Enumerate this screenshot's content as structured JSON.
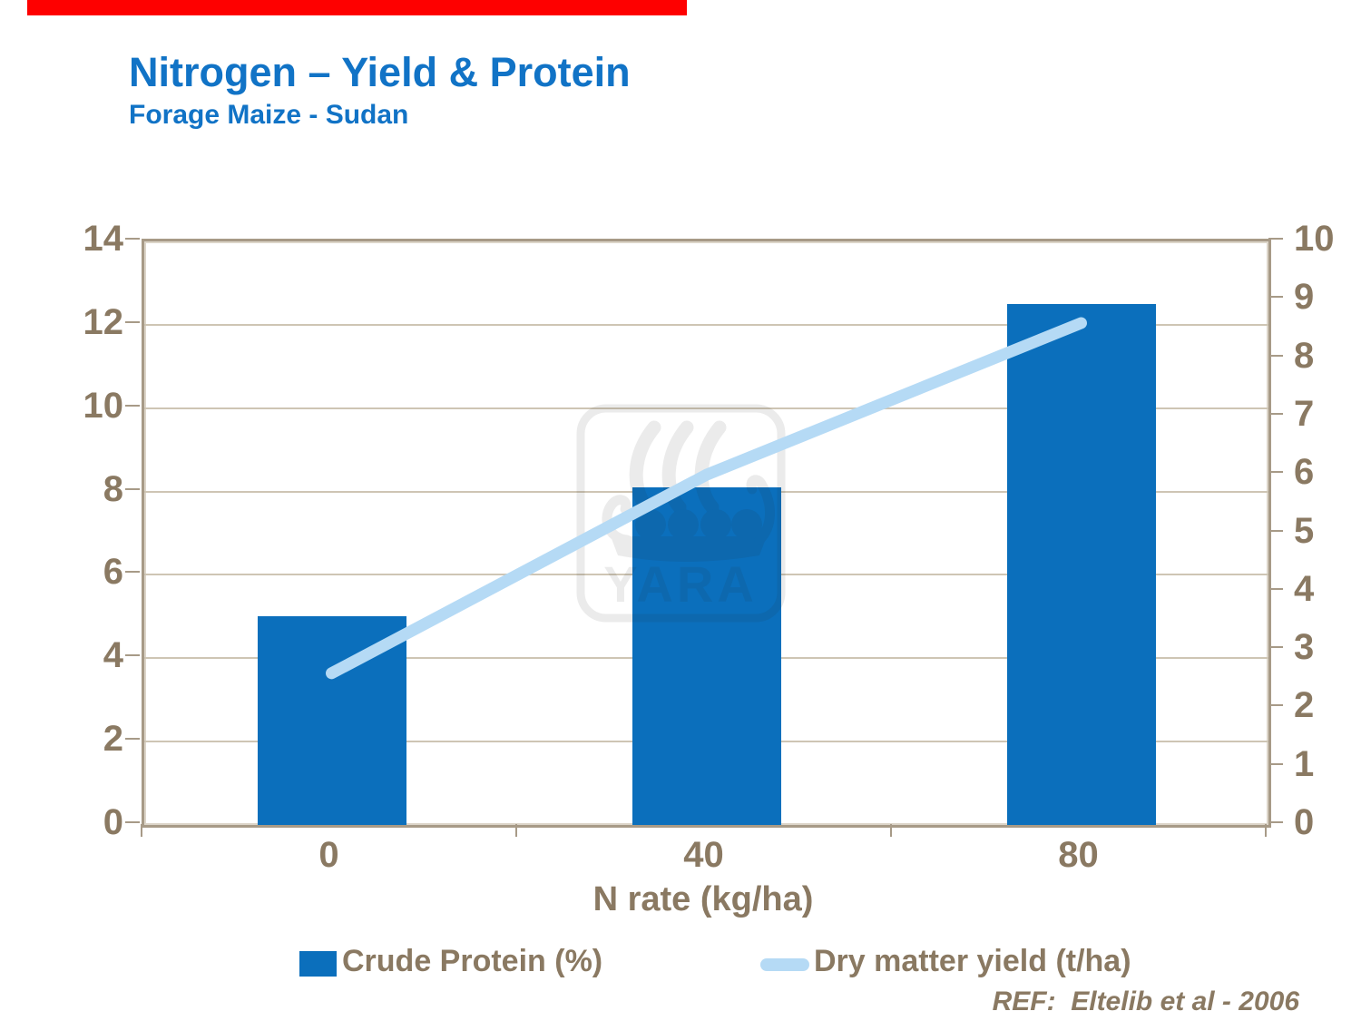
{
  "header": {
    "title": "Nitrogen – Yield & Protein",
    "subtitle": "Forage Maize - Sudan"
  },
  "footer": {
    "reference": "REF:  Eltelib et al - 2006"
  },
  "legend": {
    "items": [
      {
        "label": "Crude Protein (%)",
        "swatch": "bar"
      },
      {
        "label": "Dry matter yield (t/ha)",
        "swatch": "line"
      }
    ]
  },
  "watermark": {
    "name": "yara-logo",
    "text": "YARA"
  },
  "colors": {
    "title_blue": "#1173C6",
    "bar_blue": "#0B6FBC",
    "line_light_blue": "#B5DAF5",
    "axis_text_brown": "#8A7962",
    "gridline_tan": "#CEC5B4",
    "frame_brown": "#A79A87",
    "top_bar_red": "#FE0000"
  },
  "chart_data": {
    "type": "bar",
    "subtype": "dual-axis bar + line",
    "title": "Nitrogen – Yield & Protein",
    "subtitle": "Forage Maize - Sudan",
    "categories": [
      "0",
      "40",
      "80"
    ],
    "xlabel": "N rate (kg/ha)",
    "series": [
      {
        "name": "Crude Protein (%)",
        "type": "bar",
        "axis": "left",
        "color": "#0B6FBC",
        "values": [
          5.0,
          8.1,
          12.5
        ]
      },
      {
        "name": "Dry matter yield (t/ha)",
        "type": "line",
        "axis": "right",
        "color": "#B5DAF5",
        "values": [
          2.6,
          6.0,
          8.6
        ]
      }
    ],
    "left_axis": {
      "range": [
        0,
        14
      ],
      "ticks": [
        0,
        2,
        4,
        6,
        8,
        10,
        12,
        14
      ]
    },
    "right_axis": {
      "range": [
        0,
        10
      ],
      "ticks": [
        0,
        1,
        2,
        3,
        4,
        5,
        6,
        7,
        8,
        9,
        10
      ]
    },
    "grid": "horizontal gridlines every 2 units of left axis",
    "legend_position": "bottom"
  }
}
